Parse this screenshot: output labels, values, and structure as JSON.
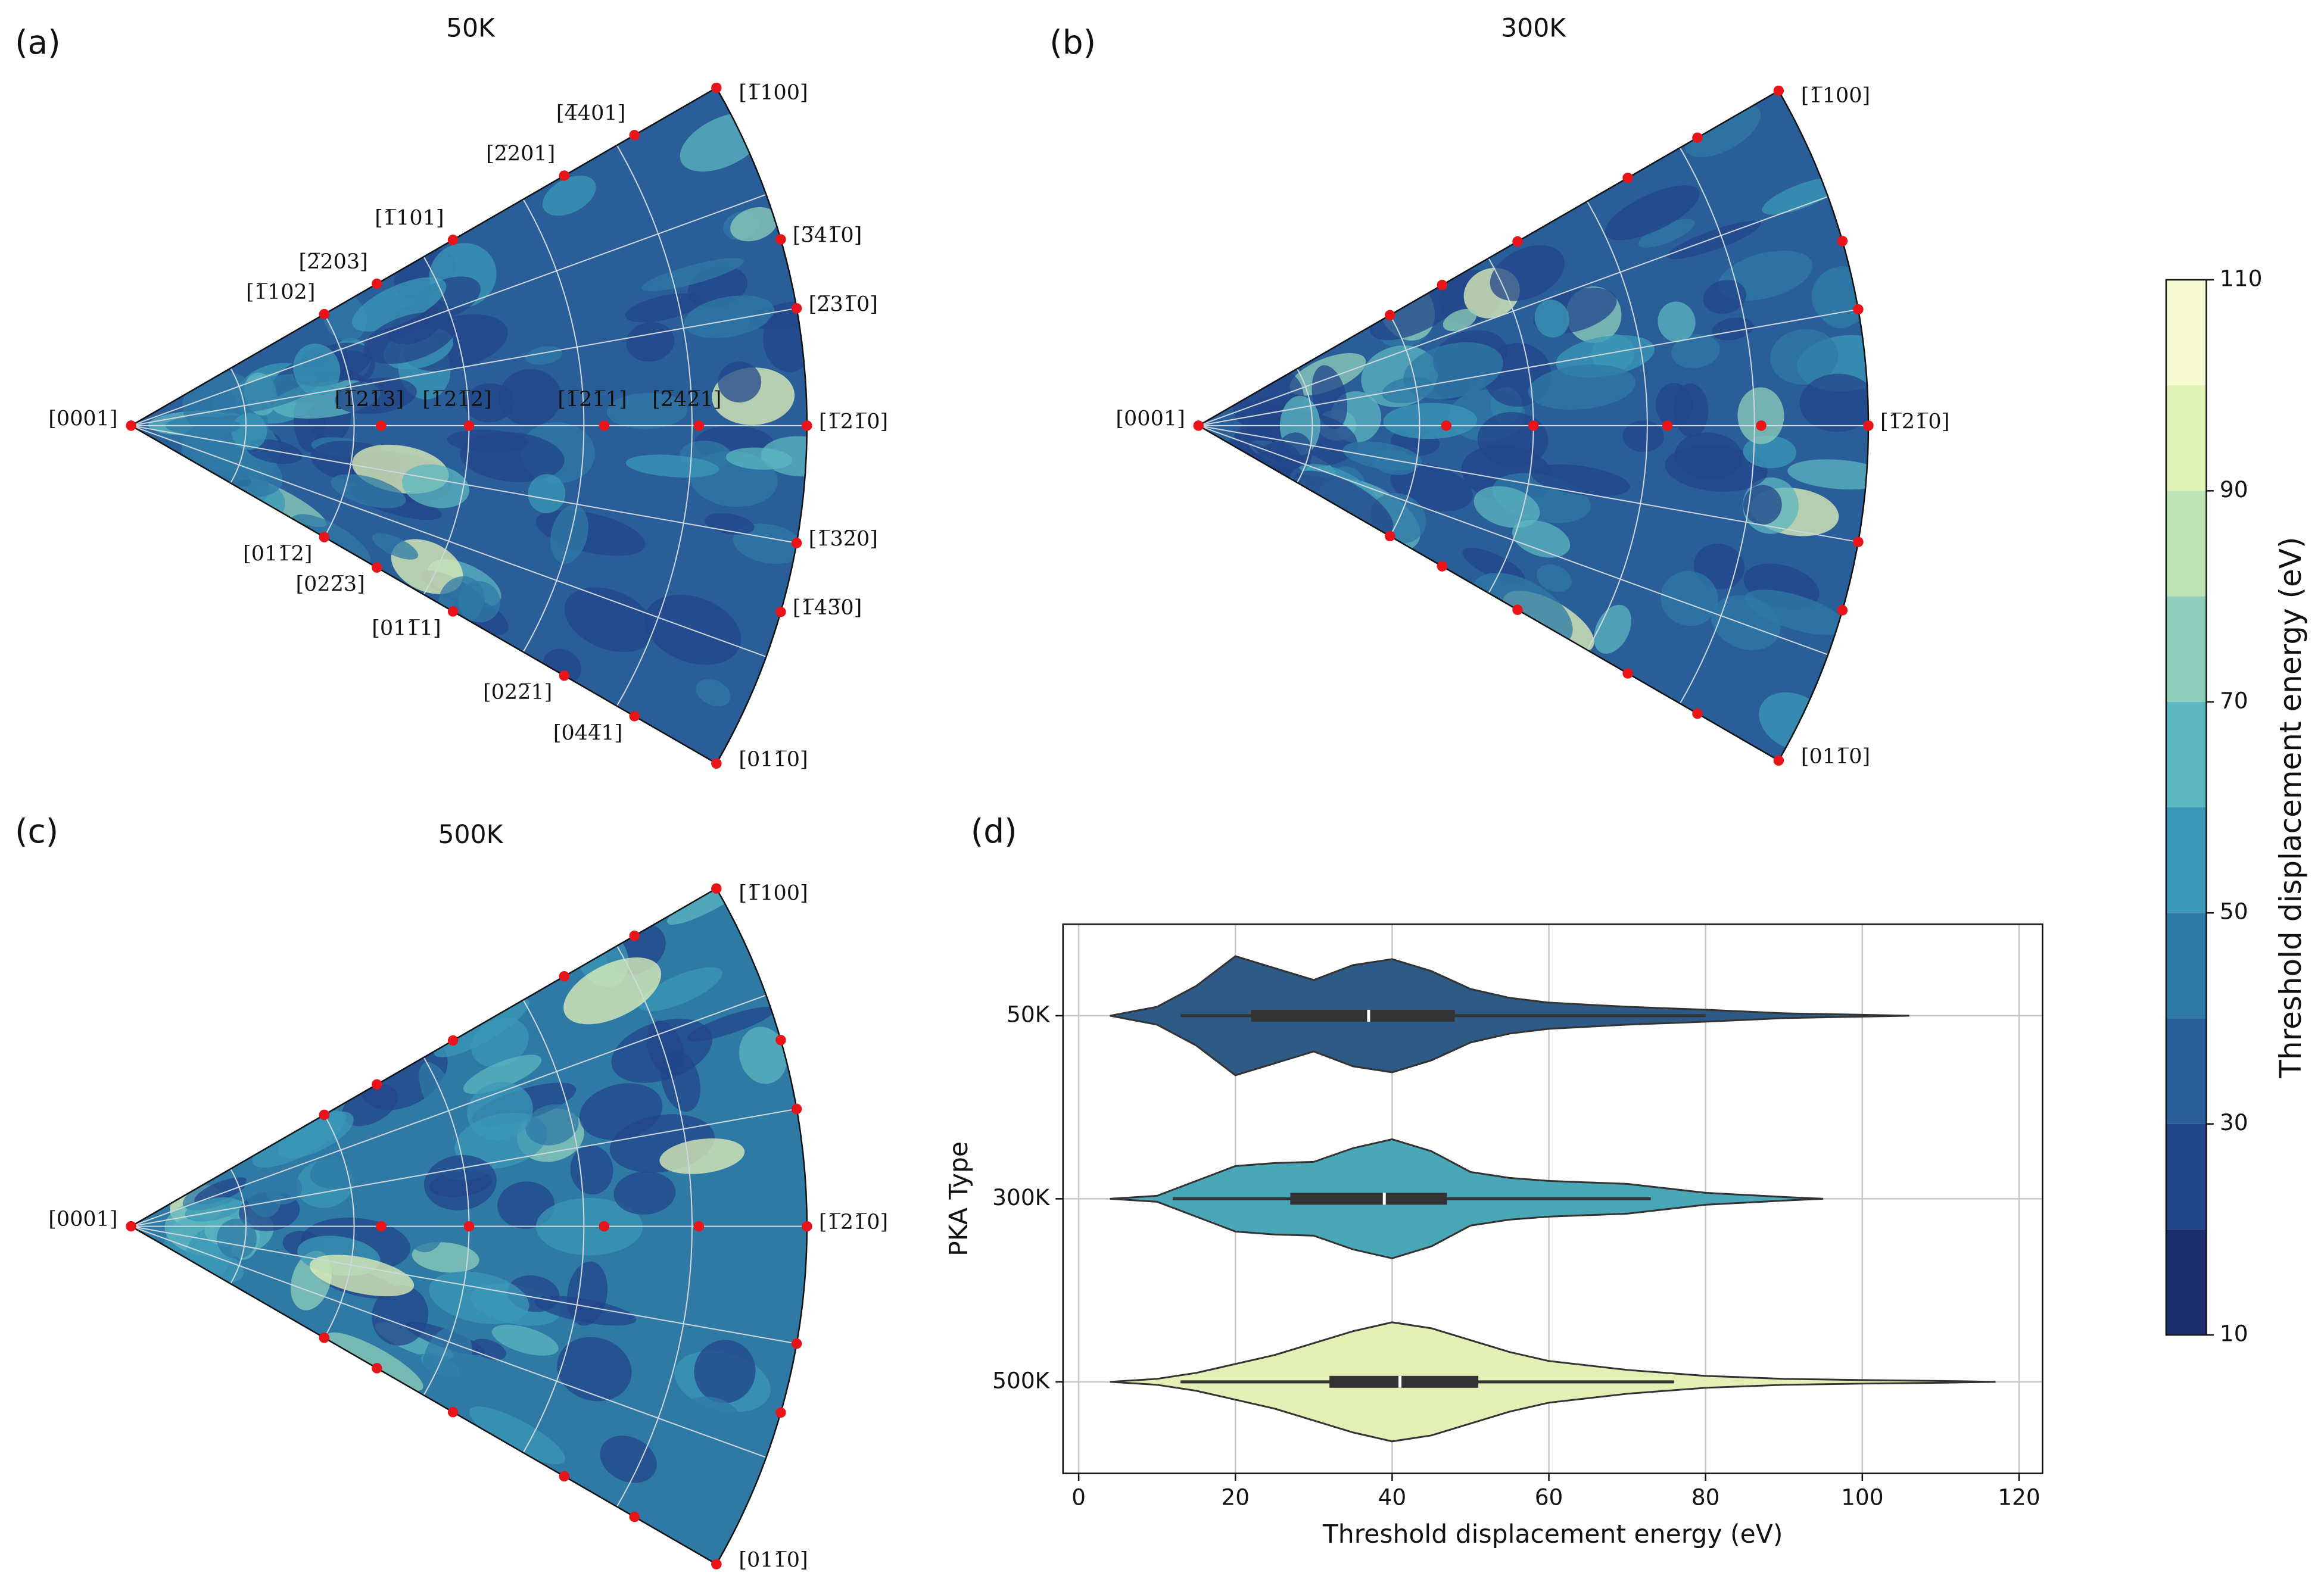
{
  "chart_data": [
    {
      "type": "pole-figure",
      "panel": "(a)",
      "title": "50K",
      "apex_label": "[0001]",
      "top_labels": [
        "[1̅102]",
        "[2̅203]",
        "[1̅101]",
        "[2̅201]",
        "[4̅401]",
        "[1̅100]"
      ],
      "arc_labels": [
        "[3̅41̅0]",
        "[2̅31̅0]",
        "[1̅21̅0]",
        "[1̅32̅0]",
        "[1̅43̅0]"
      ],
      "bottom_labels": [
        "[011̅2]",
        "[022̅3]",
        "[011̅1]",
        "[022̅1]",
        "[044̅1]",
        "[011̅0]"
      ],
      "center_labels": [
        "[1̅21̅3]",
        "[1̅21̅2]",
        "[1̅21̅1]",
        "[2̅42̅1]"
      ]
    },
    {
      "type": "pole-figure",
      "panel": "(b)",
      "title": "300K",
      "apex_label": "[0001]",
      "top_labels": [
        "[1̅100]"
      ],
      "arc_labels": [
        "[1̅21̅0]"
      ],
      "bottom_labels": [
        "[011̅0]"
      ],
      "center_labels": []
    },
    {
      "type": "pole-figure",
      "panel": "(c)",
      "title": "500K",
      "apex_label": "[0001]",
      "top_labels": [
        "[1̅100]"
      ],
      "arc_labels": [
        "[1̅21̅0]"
      ],
      "bottom_labels": [
        "[011̅0]"
      ],
      "center_labels": []
    },
    {
      "type": "violin",
      "panel": "(d)",
      "x_label": "Threshold displacement energy (eV)",
      "y_label": "PKA Type",
      "xlim": [
        -2,
        123
      ],
      "xticks": [
        0,
        20,
        40,
        60,
        80,
        100,
        120
      ],
      "grid": true,
      "categories": [
        "50K",
        "300K",
        "500K"
      ],
      "series": [
        {
          "name": "50K",
          "color": "#2e5b86",
          "density_x": [
            4,
            10,
            15,
            20,
            25,
            30,
            35,
            40,
            45,
            50,
            55,
            60,
            70,
            80,
            90,
            100,
            106
          ],
          "density": [
            0,
            0.15,
            0.5,
            1.0,
            0.8,
            0.6,
            0.85,
            0.95,
            0.75,
            0.45,
            0.3,
            0.22,
            0.15,
            0.1,
            0.04,
            0.015,
            0
          ],
          "box": [
            22,
            48
          ],
          "median": 37,
          "whiskers": [
            13,
            80
          ]
        },
        {
          "name": "300K",
          "color": "#4aa7b8",
          "density_x": [
            4,
            10,
            15,
            20,
            25,
            30,
            35,
            40,
            45,
            50,
            55,
            60,
            70,
            80,
            90,
            95
          ],
          "density": [
            0,
            0.05,
            0.3,
            0.55,
            0.6,
            0.62,
            0.85,
            1.0,
            0.8,
            0.45,
            0.35,
            0.3,
            0.25,
            0.1,
            0.03,
            0
          ],
          "box": [
            27,
            47
          ],
          "median": 39,
          "whiskers": [
            12,
            73
          ]
        },
        {
          "name": "500K",
          "color": "#e3f0b5",
          "density_x": [
            4,
            10,
            15,
            20,
            25,
            30,
            35,
            40,
            45,
            50,
            55,
            60,
            70,
            80,
            90,
            100,
            110,
            117
          ],
          "density": [
            0,
            0.05,
            0.15,
            0.3,
            0.45,
            0.65,
            0.85,
            1.0,
            0.9,
            0.7,
            0.5,
            0.35,
            0.2,
            0.1,
            0.05,
            0.03,
            0.015,
            0
          ],
          "box": [
            32,
            51
          ],
          "median": 41,
          "whiskers": [
            13,
            76
          ]
        }
      ]
    },
    {
      "type": "colorbar",
      "label": "Threshold displacement energy (eV)",
      "lim": [
        10,
        110
      ],
      "ticks": [
        10,
        30,
        50,
        70,
        90,
        110
      ],
      "levels": [
        10,
        20,
        30,
        40,
        50,
        60,
        70,
        80,
        90,
        100,
        110
      ],
      "colors": [
        "#1b2f6d",
        "#23468a",
        "#2a5e98",
        "#2f7aa5",
        "#3b98b7",
        "#5cb7c0",
        "#8fcfbb",
        "#bfe4b5",
        "#e4f3b8",
        "#f7fbd4"
      ]
    }
  ]
}
